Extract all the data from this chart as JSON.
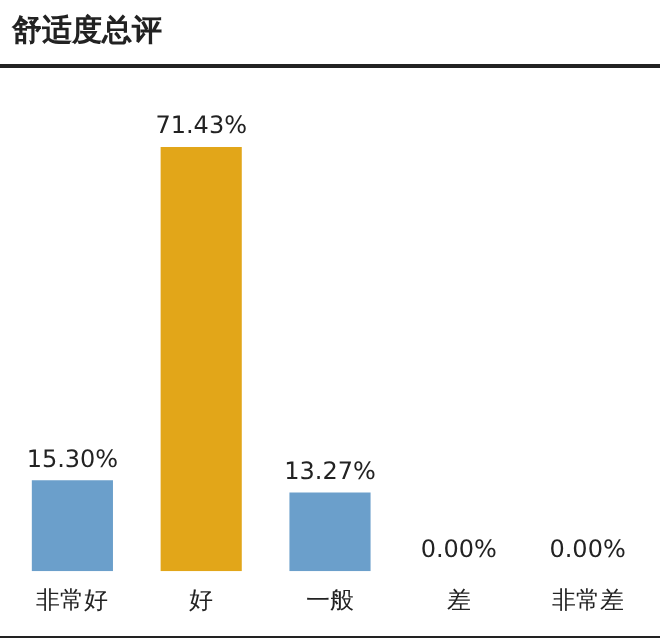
{
  "chart_data": {
    "type": "bar",
    "title": "舒适度总评",
    "categories": [
      "非常好",
      "好",
      "一般",
      "差",
      "非常差"
    ],
    "values": [
      15.3,
      71.43,
      13.27,
      0,
      0
    ],
    "colors": [
      "#6b9fcb",
      "#e2a619",
      "#6b9fcb",
      "#6b9fcb",
      "#6b9fcb"
    ],
    "value_labels": [
      "15.30%",
      "71.43%",
      "13.27%",
      "0.00%",
      "0.00%"
    ],
    "grid": false,
    "legend": false
  }
}
